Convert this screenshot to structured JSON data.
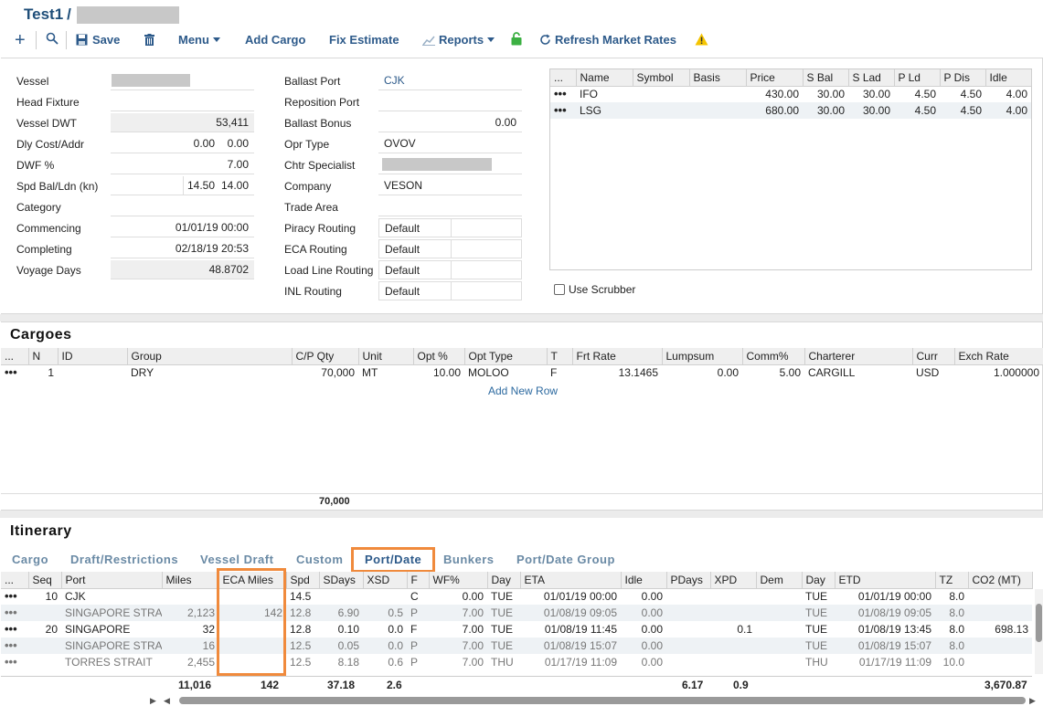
{
  "header": {
    "title": "Test1",
    "separator": "/"
  },
  "toolbar": {
    "save": "Save",
    "menu": "Menu",
    "add_cargo": "Add Cargo",
    "fix_estimate": "Fix Estimate",
    "reports": "Reports",
    "refresh": "Refresh Market Rates"
  },
  "vessel_form": {
    "col1": [
      {
        "label": "Vessel",
        "value": ""
      },
      {
        "label": "Head Fixture",
        "value": ""
      },
      {
        "label": "Vessel DWT",
        "value": "53,411"
      },
      {
        "label": "Dly Cost/Addr",
        "value": "0.00",
        "value2": "0.00"
      },
      {
        "label": "DWF %",
        "value": "7.00"
      },
      {
        "label": "Spd Bal/Ldn (kn)",
        "value": "14.50",
        "value2": "14.00"
      },
      {
        "label": "Category",
        "value": ""
      },
      {
        "label": "Commencing",
        "value": "01/01/19 00:00"
      },
      {
        "label": "Completing",
        "value": "02/18/19 20:53"
      },
      {
        "label": "Voyage Days",
        "value": "48.8702"
      }
    ],
    "col2": [
      {
        "label": "Ballast Port",
        "value": "CJK"
      },
      {
        "label": "Reposition Port",
        "value": ""
      },
      {
        "label": "Ballast Bonus",
        "value": "0.00"
      },
      {
        "label": "Opr Type",
        "value": "OVOV"
      },
      {
        "label": "Chtr Specialist",
        "value": ""
      },
      {
        "label": "Company",
        "value": "VESON"
      },
      {
        "label": "Trade Area",
        "value": ""
      },
      {
        "label": "Piracy Routing",
        "value": "Default"
      },
      {
        "label": "ECA Routing",
        "value": "Default"
      },
      {
        "label": "Load Line Routing",
        "value": "Default"
      },
      {
        "label": "INL Routing",
        "value": "Default"
      }
    ]
  },
  "fuel_grid": {
    "headers": [
      "...",
      "Name",
      "Symbol",
      "Basis",
      "Price",
      "S Bal",
      "S Lad",
      "P Ld",
      "P Dis",
      "Idle"
    ],
    "rows": [
      [
        "•••",
        "IFO",
        "",
        "",
        "430.00",
        "30.00",
        "30.00",
        "4.50",
        "4.50",
        "4.00"
      ],
      [
        "•••",
        "LSG",
        "",
        "",
        "680.00",
        "30.00",
        "30.00",
        "4.50",
        "4.50",
        "4.00"
      ]
    ],
    "use_scrubber": "Use Scrubber"
  },
  "cargoes": {
    "title": "Cargoes",
    "headers": [
      "...",
      "N",
      "ID",
      "Group",
      "C/P Qty",
      "Unit",
      "Opt %",
      "Opt Type",
      "T",
      "Frt Rate",
      "Lumpsum",
      "Comm%",
      "Charterer",
      "Curr",
      "Exch Rate"
    ],
    "rows": [
      [
        "•••",
        "1",
        "",
        "DRY",
        "70,000",
        "MT",
        "10.00",
        "MOLOO",
        "F",
        "13.1465",
        "0.00",
        "5.00",
        "CARGILL",
        "USD",
        "1.000000"
      ]
    ],
    "add_row": "Add New Row",
    "total_qty": "70,000"
  },
  "itinerary": {
    "title": "Itinerary",
    "tabs": [
      "Cargo",
      "Draft/Restrictions",
      "Vessel Draft",
      "Custom",
      "Port/Date",
      "Bunkers",
      "Port/Date Group"
    ],
    "active_tab": "Port/Date",
    "headers": [
      "...",
      "Seq",
      "Port",
      "Miles",
      "ECA Miles",
      "Spd",
      "SDays",
      "XSD",
      "F",
      "WF%",
      "Day",
      "ETA",
      "Idle",
      "PDays",
      "XPD",
      "Dem",
      "Day",
      "ETD",
      "TZ",
      "CO2 (MT)"
    ],
    "rows": [
      [
        "•••",
        "10",
        "CJK",
        "",
        "",
        "14.5",
        "",
        "",
        "C",
        "0.00",
        "TUE",
        "01/01/19 00:00",
        "0.00",
        "",
        "",
        "",
        "TUE",
        "01/01/19 00:00",
        "8.0",
        ""
      ],
      [
        "•••",
        "",
        "SINGAPORE STRA",
        "2,123",
        "142",
        "12.8",
        "6.90",
        "0.5",
        "P",
        "7.00",
        "TUE",
        "01/08/19 09:05",
        "0.00",
        "",
        "",
        "",
        "TUE",
        "01/08/19 09:05",
        "8.0",
        ""
      ],
      [
        "•••",
        "20",
        "SINGAPORE",
        "32",
        "",
        "12.8",
        "0.10",
        "0.0",
        "F",
        "7.00",
        "TUE",
        "01/08/19 11:45",
        "0.00",
        "",
        "0.1",
        "",
        "TUE",
        "01/08/19 13:45",
        "8.0",
        "698.13"
      ],
      [
        "•••",
        "",
        "SINGAPORE STRA",
        "16",
        "",
        "12.5",
        "0.05",
        "0.0",
        "P",
        "7.00",
        "TUE",
        "01/08/19 15:07",
        "0.00",
        "",
        "",
        "",
        "TUE",
        "01/08/19 15:07",
        "8.0",
        ""
      ],
      [
        "•••",
        "",
        "TORRES STRAIT",
        "2,455",
        "",
        "12.5",
        "8.18",
        "0.6",
        "P",
        "7.00",
        "THU",
        "01/17/19 11:09",
        "0.00",
        "",
        "",
        "",
        "THU",
        "01/17/19 11:09",
        "10.0",
        ""
      ]
    ],
    "totals": {
      "miles": "11,016",
      "eca_miles": "142",
      "sdays": "37.18",
      "xsd": "2.6",
      "pdays": "6.17",
      "xpd": "0.9",
      "co2": "3,670.87"
    }
  }
}
